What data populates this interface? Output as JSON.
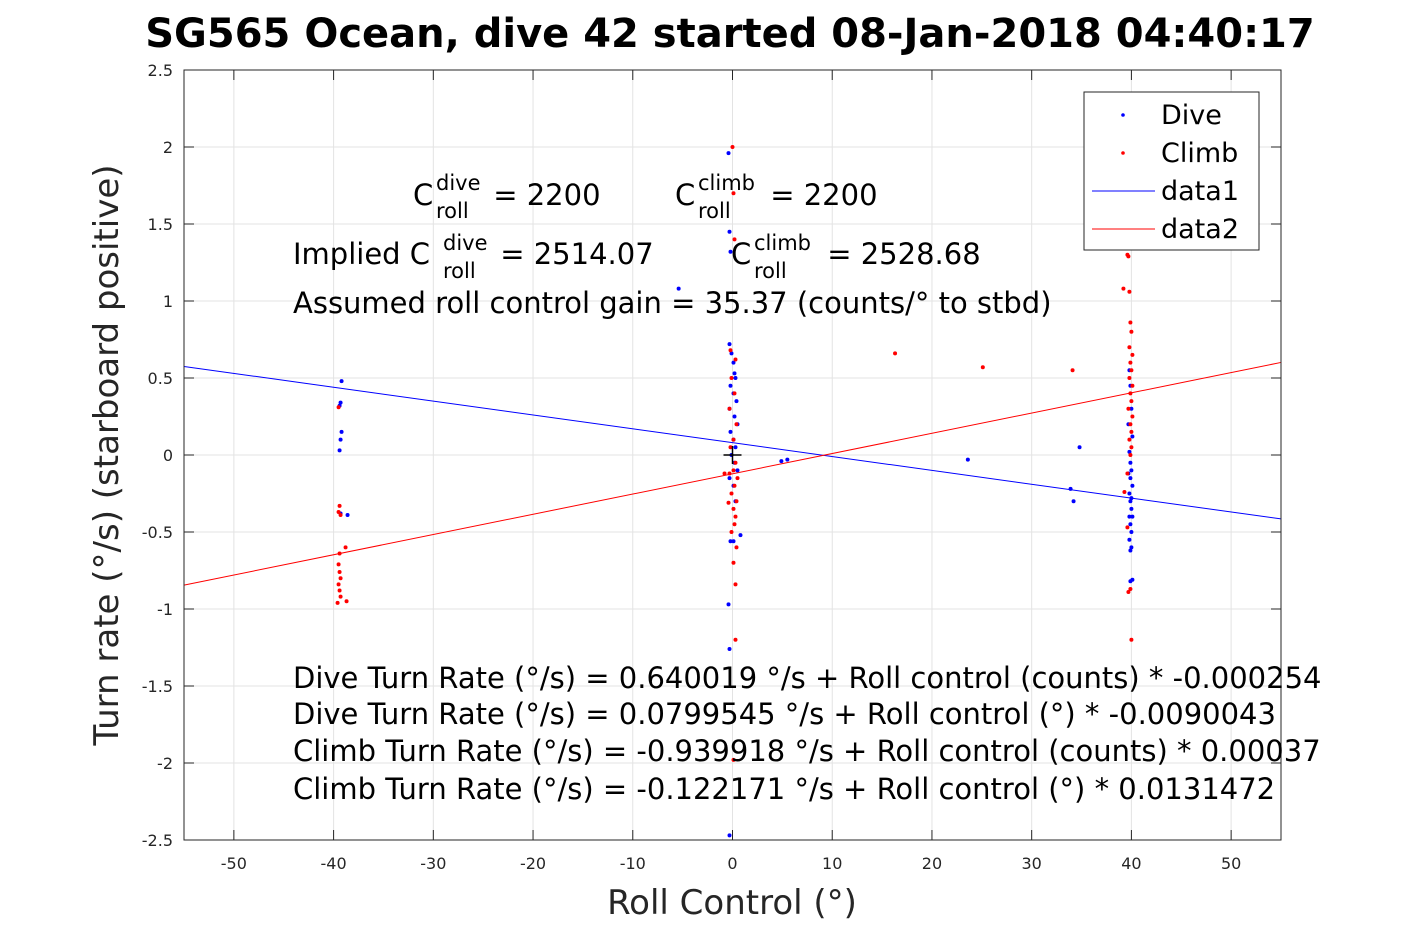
{
  "chart_data": {
    "type": "scatter",
    "title": "SG565 Ocean, dive 42 started 08-Jan-2018 04:40:17",
    "xlabel": "Roll Control (°)",
    "ylabel": "Turn rate (°/s) (starboard positive)",
    "xlim": [
      -55,
      55
    ],
    "ylim": [
      -2.5,
      2.5
    ],
    "xticks": [
      "-50",
      "-40",
      "-30",
      "-20",
      "-10",
      "0",
      "10",
      "20",
      "30",
      "40",
      "50"
    ],
    "yticks": [
      "-2.5",
      "-2",
      "-1.5",
      "-1",
      "-0.5",
      "0",
      "0.5",
      "1",
      "1.5",
      "2",
      "2.5"
    ],
    "grid": true,
    "legend": {
      "placement": "top-right",
      "entries": [
        "Dive",
        "Climb",
        "data1",
        "data2"
      ]
    },
    "annotations": {
      "c_roll_dive_base": "C",
      "c_roll_dive_sup": "dive",
      "c_roll_dive_sub": "roll",
      "c_roll_dive_value": " = 2200",
      "c_roll_climb_base": "C",
      "c_roll_climb_sup": "climb",
      "c_roll_climb_sub": "roll",
      "c_roll_climb_value": " = 2200",
      "implied_prefix": "Implied C",
      "implied_dive_sup": "dive",
      "implied_dive_sub": "roll",
      "implied_dive_value": " = 2514.07",
      "implied_climb_base": "C",
      "implied_climb_sup": "climb",
      "implied_climb_sub": "roll",
      "implied_climb_value": " = 2528.68",
      "gain": "Assumed roll control gain = 35.37 (counts/° to stbd)",
      "eq1": "Dive Turn Rate (°/s) = 0.640019 °/s + Roll control (counts) * -0.000254",
      "eq2": "Dive Turn Rate (°/s) = 0.0799545 °/s + Roll control (°) * -0.0090043",
      "eq3": "Climb Turn Rate (°/s) = -0.939918 °/s + Roll control (counts) * 0.00037",
      "eq4": "Climb Turn Rate (°/s) = -0.122171 °/s + Roll control (°) * 0.0131472"
    },
    "series": [
      {
        "name": "Dive",
        "kind": "points",
        "color": "#0000ff",
        "points": [
          [
            -39.2,
            0.48
          ],
          [
            -39.3,
            0.34
          ],
          [
            -39.4,
            0.32
          ],
          [
            -39.2,
            0.15
          ],
          [
            -39.3,
            0.1
          ],
          [
            -39.4,
            0.03
          ],
          [
            -38.6,
            -0.39
          ],
          [
            -39.3,
            -0.38
          ],
          [
            -0.4,
            1.96
          ],
          [
            -0.3,
            1.45
          ],
          [
            -0.2,
            1.32
          ],
          [
            -0.3,
            0.72
          ],
          [
            -0.1,
            0.66
          ],
          [
            0.1,
            0.6
          ],
          [
            0.2,
            0.53
          ],
          [
            0.3,
            0.5
          ],
          [
            -0.2,
            0.45
          ],
          [
            0.1,
            0.4
          ],
          [
            0.4,
            0.35
          ],
          [
            -0.3,
            0.3
          ],
          [
            0.2,
            0.25
          ],
          [
            0.5,
            0.2
          ],
          [
            -0.2,
            0.15
          ],
          [
            0.1,
            0.1
          ],
          [
            0.3,
            0.05
          ],
          [
            -0.1,
            0.0
          ],
          [
            0.2,
            -0.05
          ],
          [
            0.5,
            -0.1
          ],
          [
            -0.3,
            -0.15
          ],
          [
            0.1,
            -0.2
          ],
          [
            0.3,
            -0.3
          ],
          [
            -0.2,
            -0.56
          ],
          [
            0.1,
            -0.56
          ],
          [
            0.8,
            -0.52
          ],
          [
            -0.4,
            -0.97
          ],
          [
            -0.3,
            -1.26
          ],
          [
            -0.3,
            -2.47
          ],
          [
            -5.4,
            1.08
          ],
          [
            4.9,
            -0.04
          ],
          [
            5.5,
            -0.03
          ],
          [
            23.6,
            -0.03
          ],
          [
            33.9,
            -0.22
          ],
          [
            34.2,
            -0.3
          ],
          [
            34.8,
            0.05
          ],
          [
            39.8,
            0.55
          ],
          [
            39.9,
            0.45
          ],
          [
            40.0,
            0.3
          ],
          [
            39.7,
            0.2
          ],
          [
            40.1,
            0.12
          ],
          [
            39.8,
            0.02
          ],
          [
            39.9,
            -0.05
          ],
          [
            40.0,
            -0.1
          ],
          [
            39.9,
            -0.15
          ],
          [
            40.1,
            -0.2
          ],
          [
            39.8,
            -0.25
          ],
          [
            39.9,
            -0.3
          ],
          [
            40.0,
            -0.35
          ],
          [
            40.1,
            -0.4
          ],
          [
            39.9,
            -0.45
          ],
          [
            40.0,
            -0.5
          ],
          [
            39.8,
            -0.55
          ],
          [
            40.0,
            -0.6
          ],
          [
            39.9,
            -0.62
          ],
          [
            40.1,
            -0.81
          ],
          [
            39.9,
            -0.82
          ],
          [
            40.0,
            -0.28
          ],
          [
            39.8,
            -0.4
          ],
          [
            39.7,
            -0.12
          ]
        ]
      },
      {
        "name": "Climb",
        "kind": "points",
        "color": "#ff0000",
        "points": [
          [
            -39.5,
            0.31
          ],
          [
            -39.4,
            -0.33
          ],
          [
            -39.5,
            -0.37
          ],
          [
            -39.3,
            -0.39
          ],
          [
            -38.8,
            -0.6
          ],
          [
            -39.4,
            -0.64
          ],
          [
            -39.5,
            -0.71
          ],
          [
            -39.4,
            -0.76
          ],
          [
            -39.3,
            -0.8
          ],
          [
            -39.5,
            -0.84
          ],
          [
            -39.4,
            -0.88
          ],
          [
            -39.3,
            -0.92
          ],
          [
            -39.6,
            -0.96
          ],
          [
            -38.7,
            -0.95
          ],
          [
            0.0,
            2.0
          ],
          [
            0.1,
            1.7
          ],
          [
            0.2,
            1.4
          ],
          [
            -0.2,
            0.68
          ],
          [
            0.3,
            0.62
          ],
          [
            -0.1,
            0.5
          ],
          [
            0.2,
            0.4
          ],
          [
            -0.3,
            0.3
          ],
          [
            0.4,
            0.2
          ],
          [
            0.1,
            0.1
          ],
          [
            -0.2,
            0.05
          ],
          [
            0.3,
            -0.05
          ],
          [
            0.1,
            -0.1
          ],
          [
            -0.3,
            -0.12
          ],
          [
            0.5,
            -0.15
          ],
          [
            0.2,
            -0.2
          ],
          [
            -0.1,
            -0.25
          ],
          [
            0.4,
            -0.3
          ],
          [
            0.1,
            -0.35
          ],
          [
            -0.4,
            -0.31
          ],
          [
            0.3,
            -0.4
          ],
          [
            0.2,
            -0.45
          ],
          [
            -0.1,
            -0.5
          ],
          [
            0.4,
            -0.6
          ],
          [
            0.1,
            -0.7
          ],
          [
            0.3,
            -0.84
          ],
          [
            0.3,
            -1.2
          ],
          [
            0.1,
            -1.98
          ],
          [
            -0.8,
            -0.12
          ],
          [
            16.3,
            0.66
          ],
          [
            25.1,
            0.57
          ],
          [
            34.1,
            0.55
          ],
          [
            39.6,
            1.3
          ],
          [
            39.7,
            1.29
          ],
          [
            39.2,
            1.08
          ],
          [
            39.8,
            1.06
          ],
          [
            39.9,
            0.86
          ],
          [
            40.0,
            0.8
          ],
          [
            39.8,
            0.7
          ],
          [
            40.1,
            0.65
          ],
          [
            39.9,
            0.6
          ],
          [
            40.0,
            0.55
          ],
          [
            39.8,
            0.5
          ],
          [
            40.1,
            0.45
          ],
          [
            39.9,
            0.4
          ],
          [
            40.0,
            0.35
          ],
          [
            39.7,
            0.3
          ],
          [
            40.1,
            0.25
          ],
          [
            39.9,
            0.2
          ],
          [
            40.0,
            0.15
          ],
          [
            39.8,
            0.1
          ],
          [
            40.0,
            0.05
          ],
          [
            39.9,
            0.0
          ],
          [
            39.6,
            -0.12
          ],
          [
            39.3,
            -0.24
          ],
          [
            39.6,
            -0.47
          ],
          [
            39.9,
            -0.87
          ],
          [
            39.7,
            -0.89
          ],
          [
            40.0,
            -1.2
          ]
        ]
      },
      {
        "name": "data1",
        "kind": "line",
        "color": "#0000ff",
        "x": [
          -55,
          55
        ],
        "y": [
          0.575,
          -0.415
        ]
      },
      {
        "name": "data2",
        "kind": "line",
        "color": "#ff0000",
        "x": [
          -55,
          55
        ],
        "y": [
          -0.845,
          0.601
        ]
      }
    ],
    "marker": {
      "x": 0,
      "y": 0,
      "symbol": "+",
      "color": "#000000"
    }
  }
}
